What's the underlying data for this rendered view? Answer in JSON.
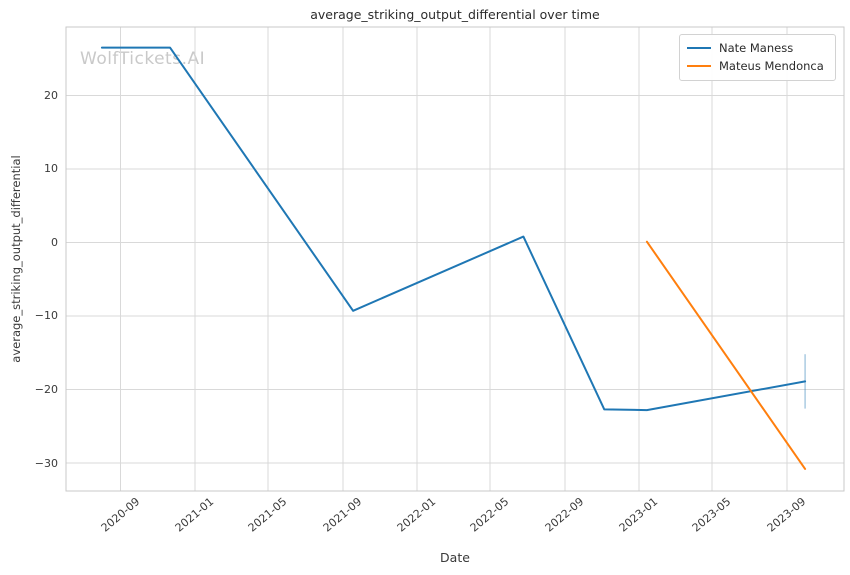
{
  "watermark": "WolfTickets.AI",
  "chart_data": {
    "type": "line",
    "title": "average_striking_output_differential over time",
    "xlabel": "Date",
    "ylabel": "average_striking_output_differential",
    "grid": true,
    "legend_position": "upper right",
    "xlim": [
      "2020-06-03",
      "2023-12-04"
    ],
    "ylim": [
      -33.8,
      29.3
    ],
    "xticks": {
      "dates": [
        "2020-09-01",
        "2021-01-01",
        "2021-05-01",
        "2021-09-01",
        "2022-01-01",
        "2022-05-01",
        "2022-09-01",
        "2023-01-01",
        "2023-05-01",
        "2023-09-01"
      ],
      "labels": [
        "2020-09",
        "2021-01",
        "2021-05",
        "2021-09",
        "2022-01",
        "2022-05",
        "2022-09",
        "2023-01",
        "2023-05",
        "2023-09"
      ]
    },
    "yticks": {
      "values": [
        20,
        10,
        0,
        -10,
        -20,
        -30
      ],
      "labels": [
        "20",
        "10",
        "0",
        "−10",
        "−20",
        "−30"
      ]
    },
    "series": [
      {
        "name": "Nate Maness",
        "color": "#1f77b4",
        "x": [
          "2020-08-01",
          "2020-11-21",
          "2021-09-18",
          "2022-06-25",
          "2022-11-05",
          "2023-01-14",
          "2023-10-01"
        ],
        "y": [
          26.5,
          26.5,
          -9.3,
          0.8,
          -22.7,
          -22.8,
          -18.9
        ],
        "error_bar": {
          "x": "2023-10-01",
          "y_low": -22.6,
          "y_high": -15.2
        }
      },
      {
        "name": "Mateus Mendonca",
        "color": "#ff7f0e",
        "x": [
          "2023-01-14",
          "2023-10-01"
        ],
        "y": [
          0.1,
          -30.8
        ]
      }
    ]
  },
  "colors": {
    "grid": "#d9d9d9",
    "spine": "#c9c9c9",
    "tick_text": "#3a3a3a",
    "title_text": "#2b2b2b",
    "watermark": "#c9c9c9",
    "background": "#ffffff",
    "error_bar": "#1f77b4"
  }
}
